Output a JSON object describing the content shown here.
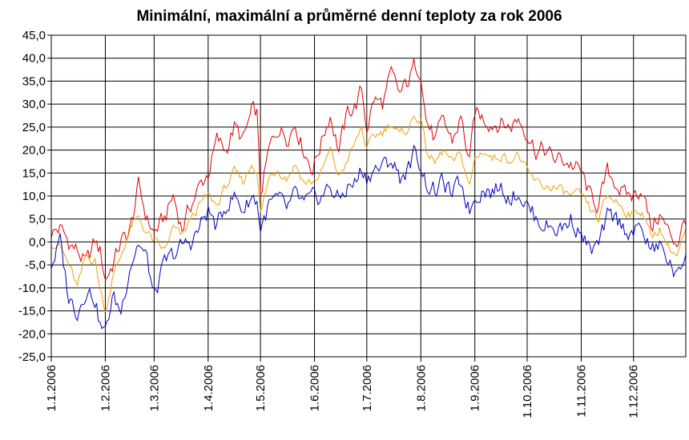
{
  "chart_data": {
    "type": "line",
    "title": "Minimální, maximální a průměrné denní teploty za rok 2006",
    "xlabel": "",
    "ylabel": "",
    "ylim": [
      -25,
      45
    ],
    "y_ticks": [
      "-25,0",
      "-20,0",
      "-15,0",
      "-10,0",
      "-5,0",
      "0,0",
      "5,0",
      "10,0",
      "15,0",
      "20,0",
      "25,0",
      "30,0",
      "35,0",
      "40,0",
      "45,0"
    ],
    "x_tick_labels": [
      "1.1.2006",
      "1.2.2006",
      "1.3.2006",
      "1.4.2006",
      "1.5.2006",
      "1.6.2006",
      "1.7.2006",
      "1.8.2006",
      "1.9.2006",
      "1.10.2006",
      "1.11.2006",
      "1.12.2006"
    ],
    "x_tick_days": [
      0,
      31,
      59,
      90,
      120,
      151,
      181,
      212,
      243,
      273,
      304,
      334
    ],
    "grid": true,
    "legend": "none",
    "series": [
      {
        "key": "max",
        "color": "#e00000",
        "points": [
          [
            0,
            2
          ],
          [
            5,
            3
          ],
          [
            10,
            0
          ],
          [
            15,
            -2
          ],
          [
            20,
            -5
          ],
          [
            25,
            0
          ],
          [
            28,
            -2
          ],
          [
            31,
            -8
          ],
          [
            35,
            -5
          ],
          [
            40,
            0
          ],
          [
            45,
            2
          ],
          [
            50,
            12
          ],
          [
            55,
            5
          ],
          [
            59,
            2
          ],
          [
            65,
            5
          ],
          [
            70,
            10
          ],
          [
            75,
            3
          ],
          [
            80,
            8
          ],
          [
            85,
            12
          ],
          [
            90,
            15
          ],
          [
            95,
            22
          ],
          [
            100,
            20
          ],
          [
            105,
            25
          ],
          [
            110,
            22
          ],
          [
            115,
            28
          ],
          [
            118,
            28
          ],
          [
            120,
            10
          ],
          [
            125,
            20
          ],
          [
            130,
            25
          ],
          [
            135,
            23
          ],
          [
            140,
            26
          ],
          [
            145,
            20
          ],
          [
            150,
            16
          ],
          [
            155,
            22
          ],
          [
            160,
            28
          ],
          [
            165,
            20
          ],
          [
            170,
            28
          ],
          [
            175,
            30
          ],
          [
            178,
            33
          ],
          [
            181,
            25
          ],
          [
            185,
            31
          ],
          [
            190,
            30
          ],
          [
            195,
            36
          ],
          [
            200,
            32
          ],
          [
            205,
            35
          ],
          [
            208,
            38
          ],
          [
            212,
            38
          ],
          [
            215,
            27
          ],
          [
            220,
            22
          ],
          [
            225,
            26
          ],
          [
            230,
            22
          ],
          [
            235,
            27
          ],
          [
            240,
            17
          ],
          [
            243,
            28
          ],
          [
            248,
            27
          ],
          [
            253,
            26
          ],
          [
            258,
            26
          ],
          [
            263,
            25
          ],
          [
            268,
            27
          ],
          [
            273,
            24
          ],
          [
            278,
            20
          ],
          [
            283,
            20
          ],
          [
            288,
            18
          ],
          [
            293,
            18
          ],
          [
            298,
            17
          ],
          [
            304,
            15
          ],
          [
            309,
            10
          ],
          [
            314,
            8
          ],
          [
            319,
            15
          ],
          [
            324,
            13
          ],
          [
            329,
            10
          ],
          [
            334,
            10
          ],
          [
            339,
            12
          ],
          [
            344,
            3
          ],
          [
            349,
            6
          ],
          [
            354,
            2
          ],
          [
            359,
            0
          ],
          [
            364,
            5
          ]
        ]
      },
      {
        "key": "mean",
        "color": "#f0a000",
        "points": [
          [
            0,
            0
          ],
          [
            5,
            -1
          ],
          [
            10,
            -5
          ],
          [
            15,
            -10
          ],
          [
            20,
            -3
          ],
          [
            25,
            -4
          ],
          [
            28,
            -10
          ],
          [
            31,
            -15
          ],
          [
            35,
            -8
          ],
          [
            40,
            -3
          ],
          [
            45,
            3
          ],
          [
            50,
            5
          ],
          [
            55,
            2
          ],
          [
            59,
            0
          ],
          [
            65,
            -2
          ],
          [
            70,
            3
          ],
          [
            75,
            1
          ],
          [
            80,
            5
          ],
          [
            85,
            8
          ],
          [
            90,
            10
          ],
          [
            95,
            8
          ],
          [
            100,
            12
          ],
          [
            105,
            15
          ],
          [
            110,
            13
          ],
          [
            115,
            17
          ],
          [
            118,
            16
          ],
          [
            120,
            6
          ],
          [
            125,
            14
          ],
          [
            130,
            16
          ],
          [
            135,
            14
          ],
          [
            140,
            17
          ],
          [
            145,
            13
          ],
          [
            150,
            13
          ],
          [
            155,
            15
          ],
          [
            160,
            20
          ],
          [
            165,
            14
          ],
          [
            170,
            18
          ],
          [
            175,
            22
          ],
          [
            178,
            25
          ],
          [
            181,
            20
          ],
          [
            185,
            23
          ],
          [
            190,
            24
          ],
          [
            195,
            26
          ],
          [
            200,
            23
          ],
          [
            205,
            25
          ],
          [
            208,
            27
          ],
          [
            212,
            27
          ],
          [
            215,
            20
          ],
          [
            220,
            17
          ],
          [
            225,
            20
          ],
          [
            230,
            17
          ],
          [
            235,
            19
          ],
          [
            240,
            12
          ],
          [
            243,
            18
          ],
          [
            248,
            20
          ],
          [
            253,
            18
          ],
          [
            258,
            19
          ],
          [
            263,
            18
          ],
          [
            268,
            19
          ],
          [
            273,
            15
          ],
          [
            278,
            13
          ],
          [
            283,
            12
          ],
          [
            288,
            12
          ],
          [
            293,
            11
          ],
          [
            298,
            10
          ],
          [
            304,
            10
          ],
          [
            309,
            7
          ],
          [
            314,
            5
          ],
          [
            319,
            10
          ],
          [
            324,
            9
          ],
          [
            329,
            7
          ],
          [
            334,
            6
          ],
          [
            339,
            7
          ],
          [
            344,
            1
          ],
          [
            349,
            3
          ],
          [
            354,
            -1
          ],
          [
            359,
            -3
          ],
          [
            364,
            2
          ]
        ]
      },
      {
        "key": "min",
        "color": "#0000c0",
        "points": [
          [
            0,
            -5
          ],
          [
            5,
            0
          ],
          [
            10,
            -12
          ],
          [
            15,
            -15
          ],
          [
            20,
            -10
          ],
          [
            25,
            -12
          ],
          [
            28,
            -18
          ],
          [
            31,
            -20
          ],
          [
            35,
            -12
          ],
          [
            40,
            -15
          ],
          [
            45,
            -5
          ],
          [
            50,
            0
          ],
          [
            55,
            -4
          ],
          [
            59,
            -12
          ],
          [
            65,
            -5
          ],
          [
            70,
            -3
          ],
          [
            75,
            -1
          ],
          [
            80,
            0
          ],
          [
            85,
            3
          ],
          [
            90,
            7
          ],
          [
            95,
            3
          ],
          [
            100,
            8
          ],
          [
            105,
            10
          ],
          [
            110,
            7
          ],
          [
            115,
            10
          ],
          [
            118,
            9
          ],
          [
            120,
            3
          ],
          [
            125,
            8
          ],
          [
            130,
            9
          ],
          [
            135,
            7
          ],
          [
            140,
            10
          ],
          [
            145,
            8
          ],
          [
            150,
            9
          ],
          [
            155,
            10
          ],
          [
            160,
            12
          ],
          [
            165,
            9
          ],
          [
            170,
            12
          ],
          [
            175,
            13
          ],
          [
            178,
            16
          ],
          [
            181,
            14
          ],
          [
            185,
            16
          ],
          [
            190,
            16
          ],
          [
            195,
            18
          ],
          [
            200,
            14
          ],
          [
            205,
            16
          ],
          [
            208,
            19
          ],
          [
            212,
            17
          ],
          [
            215,
            13
          ],
          [
            220,
            11
          ],
          [
            225,
            13
          ],
          [
            230,
            10
          ],
          [
            235,
            13
          ],
          [
            240,
            7
          ],
          [
            243,
            10
          ],
          [
            248,
            12
          ],
          [
            253,
            11
          ],
          [
            258,
            12
          ],
          [
            263,
            10
          ],
          [
            268,
            11
          ],
          [
            273,
            8
          ],
          [
            278,
            5
          ],
          [
            283,
            4
          ],
          [
            288,
            3
          ],
          [
            293,
            3
          ],
          [
            298,
            5
          ],
          [
            304,
            2
          ],
          [
            309,
            -2
          ],
          [
            314,
            -1
          ],
          [
            319,
            5
          ],
          [
            324,
            5
          ],
          [
            329,
            3
          ],
          [
            334,
            2
          ],
          [
            339,
            3
          ],
          [
            344,
            -2
          ],
          [
            349,
            -1
          ],
          [
            354,
            -4
          ],
          [
            359,
            -8
          ],
          [
            364,
            -2
          ]
        ]
      }
    ]
  }
}
